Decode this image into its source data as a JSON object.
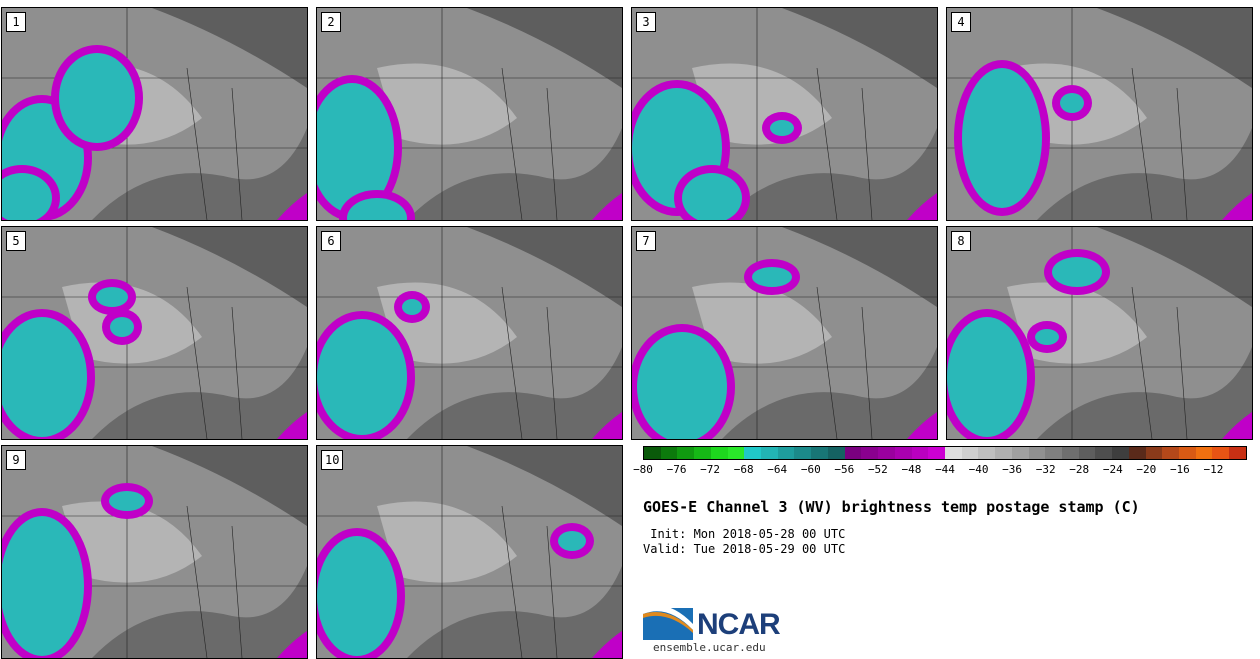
{
  "panels": [
    {
      "label": "1"
    },
    {
      "label": "2"
    },
    {
      "label": "3"
    },
    {
      "label": "4"
    },
    {
      "label": "5"
    },
    {
      "label": "6"
    },
    {
      "label": "7"
    },
    {
      "label": "8"
    },
    {
      "label": "9"
    },
    {
      "label": "10"
    }
  ],
  "colorbar": {
    "colors": [
      "#0a5a0a",
      "#0c7a0c",
      "#109a10",
      "#16b816",
      "#1ed81e",
      "#2ae82a",
      "#20c8c8",
      "#22b4b4",
      "#1e9e9e",
      "#1b8a8a",
      "#187676",
      "#156262",
      "#7a0080",
      "#8a008f",
      "#9a009f",
      "#aa00b0",
      "#ba00c0",
      "#cc00d2",
      "#dedede",
      "#cfcfcf",
      "#bfbfbf",
      "#b0b0b0",
      "#a0a0a0",
      "#909090",
      "#808080",
      "#6f6f6f",
      "#5e5e5e",
      "#4e4e4e",
      "#3e3e3e",
      "#5a2a1a",
      "#8a3a1a",
      "#b4481a",
      "#d85a14",
      "#f07010",
      "#e85414",
      "#c83014"
    ],
    "tick_labels": [
      "−80",
      "−76",
      "−72",
      "−68",
      "−64",
      "−60",
      "−56",
      "−52",
      "−48",
      "−44",
      "−40",
      "−36",
      "−32",
      "−28",
      "−24",
      "−20",
      "−16",
      "−12"
    ]
  },
  "title": "GOES-E Channel 3 (WV) brightness temp postage stamp (C)",
  "init_line": " Init: Mon 2018-05-28 00 UTC",
  "valid_line": "Valid: Tue 2018-05-29 00 UTC",
  "logo": {
    "name": "NCAR",
    "url": "ensemble.ucar.edu"
  },
  "colors": {
    "cold_cloud": "#2ab8b8",
    "deep_cloud": "#c000c8",
    "background": "#8a8a8a"
  }
}
